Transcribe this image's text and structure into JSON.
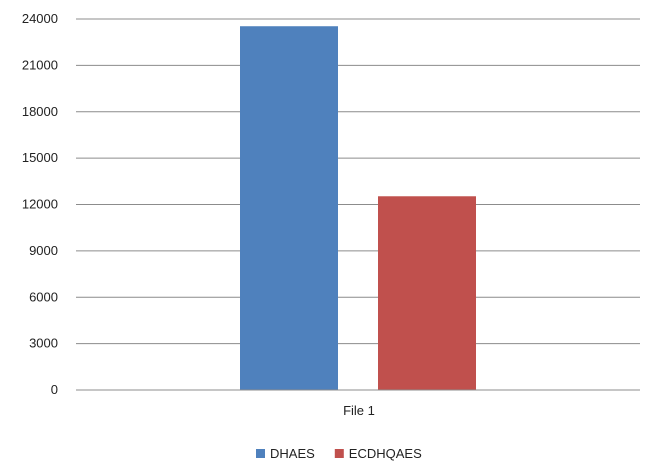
{
  "chart_data": {
    "type": "bar",
    "categories": [
      "File 1"
    ],
    "series": [
      {
        "name": "DHAES",
        "values": [
          23500
        ],
        "color": "#4f81bd"
      },
      {
        "name": "ECDHQAES",
        "values": [
          12500
        ],
        "color": "#c0504d"
      }
    ],
    "ylim": [
      0,
      24000
    ],
    "yticks": [
      0,
      3000,
      6000,
      9000,
      12000,
      15000,
      18000,
      21000,
      24000
    ],
    "grid": true,
    "legend_position": "bottom"
  }
}
